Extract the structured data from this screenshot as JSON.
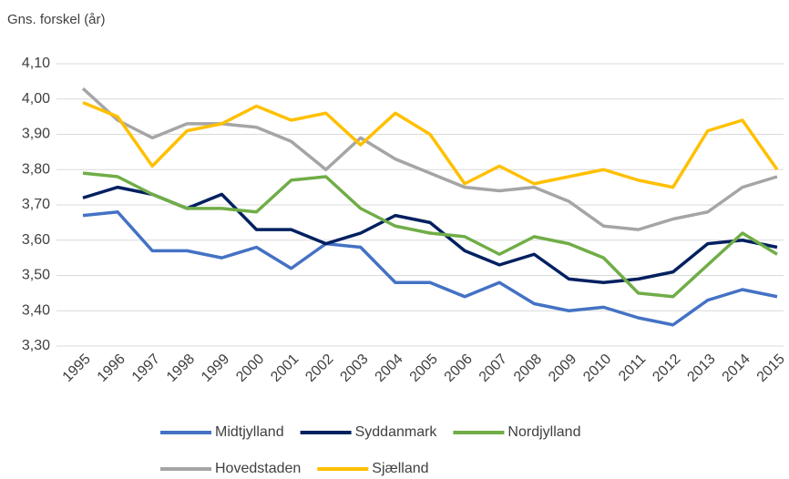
{
  "chart_data": {
    "type": "line",
    "subtitle": "Gns. forskel (år)",
    "categories": [
      "1995",
      "1996",
      "1997",
      "1998",
      "1999",
      "2000",
      "2001",
      "2002",
      "2003",
      "2004",
      "2005",
      "2006",
      "2007",
      "2008",
      "2009",
      "2010",
      "2011",
      "2012",
      "2013",
      "2014",
      "2015"
    ],
    "series": [
      {
        "name": "Midtjylland",
        "color": "#4472c4",
        "values": [
          3.67,
          3.68,
          3.57,
          3.57,
          3.55,
          3.58,
          3.52,
          3.59,
          3.58,
          3.48,
          3.48,
          3.44,
          3.48,
          3.42,
          3.4,
          3.41,
          3.38,
          3.36,
          3.43,
          3.46,
          3.44
        ]
      },
      {
        "name": "Syddanmark",
        "color": "#002060",
        "values": [
          3.72,
          3.75,
          3.73,
          3.69,
          3.73,
          3.63,
          3.63,
          3.59,
          3.62,
          3.67,
          3.65,
          3.57,
          3.53,
          3.56,
          3.49,
          3.48,
          3.49,
          3.51,
          3.59,
          3.6,
          3.58
        ]
      },
      {
        "name": "Nordjylland",
        "color": "#70ad47",
        "values": [
          3.79,
          3.78,
          3.73,
          3.69,
          3.69,
          3.68,
          3.77,
          3.78,
          3.69,
          3.64,
          3.62,
          3.61,
          3.56,
          3.61,
          3.59,
          3.55,
          3.45,
          3.44,
          3.53,
          3.62,
          3.56
        ]
      },
      {
        "name": "Hovedstaden",
        "color": "#a5a5a5",
        "values": [
          4.03,
          3.94,
          3.89,
          3.93,
          3.93,
          3.92,
          3.88,
          3.8,
          3.89,
          3.83,
          3.79,
          3.75,
          3.74,
          3.75,
          3.71,
          3.64,
          3.63,
          3.66,
          3.68,
          3.75,
          3.78
        ]
      },
      {
        "name": "Sjælland",
        "color": "#ffc000",
        "values": [
          3.99,
          3.95,
          3.81,
          3.91,
          3.93,
          3.98,
          3.94,
          3.96,
          3.87,
          3.96,
          3.9,
          3.76,
          3.81,
          3.76,
          3.78,
          3.8,
          3.77,
          3.75,
          3.91,
          3.94,
          3.8
        ]
      }
    ],
    "ylim": [
      3.3,
      4.1
    ],
    "yticks": [
      {
        "value": 3.3,
        "label": "3,30"
      },
      {
        "value": 3.4,
        "label": "3,40"
      },
      {
        "value": 3.5,
        "label": "3,50"
      },
      {
        "value": 3.6,
        "label": "3,60"
      },
      {
        "value": 3.7,
        "label": "3,70"
      },
      {
        "value": 3.8,
        "label": "3,80"
      },
      {
        "value": 3.9,
        "label": "3,90"
      },
      {
        "value": 4.0,
        "label": "4,00"
      },
      {
        "value": 4.1,
        "label": "4,10"
      }
    ],
    "grid": true,
    "legend": "bottom"
  }
}
